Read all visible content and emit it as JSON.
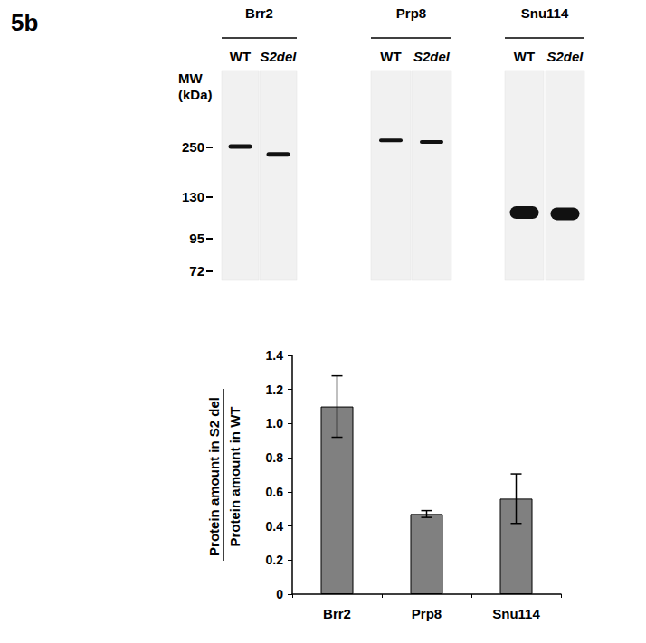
{
  "panel_label": "5b",
  "blot": {
    "mw_title": [
      "MW",
      "(kDa)"
    ],
    "markers": [
      250,
      130,
      95,
      72
    ],
    "groups": [
      {
        "protein": "Brr2",
        "lanes": [
          {
            "label": "WT",
            "band_kda": 252
          },
          {
            "label": "S2del",
            "band_kda": 233
          }
        ]
      },
      {
        "protein": "Prp8",
        "lanes": [
          {
            "label": "WT",
            "band_kda": 267
          },
          {
            "label": "S2del",
            "band_kda": 263
          }
        ]
      },
      {
        "protein": "Snu114",
        "lanes": [
          {
            "label": "WT",
            "band_kda": 117
          },
          {
            "label": "S2del",
            "band_kda": 116
          }
        ]
      }
    ]
  },
  "chart_data": {
    "type": "bar",
    "categories": [
      "Brr2",
      "Prp8",
      "Snu114"
    ],
    "values": [
      1.1,
      0.47,
      0.56
    ],
    "errors": [
      0.18,
      0.02,
      0.145
    ],
    "color": "#808080",
    "ylabel": [
      "Protein amount in S2 del",
      "Protein amount in WT"
    ],
    "ylim": [
      0,
      1.4
    ],
    "yticks": [
      0,
      0.2,
      0.4,
      0.6,
      0.8,
      {
        "value": 1,
        "label": "1.0"
      },
      1.2,
      1.4
    ],
    "grid": false
  }
}
